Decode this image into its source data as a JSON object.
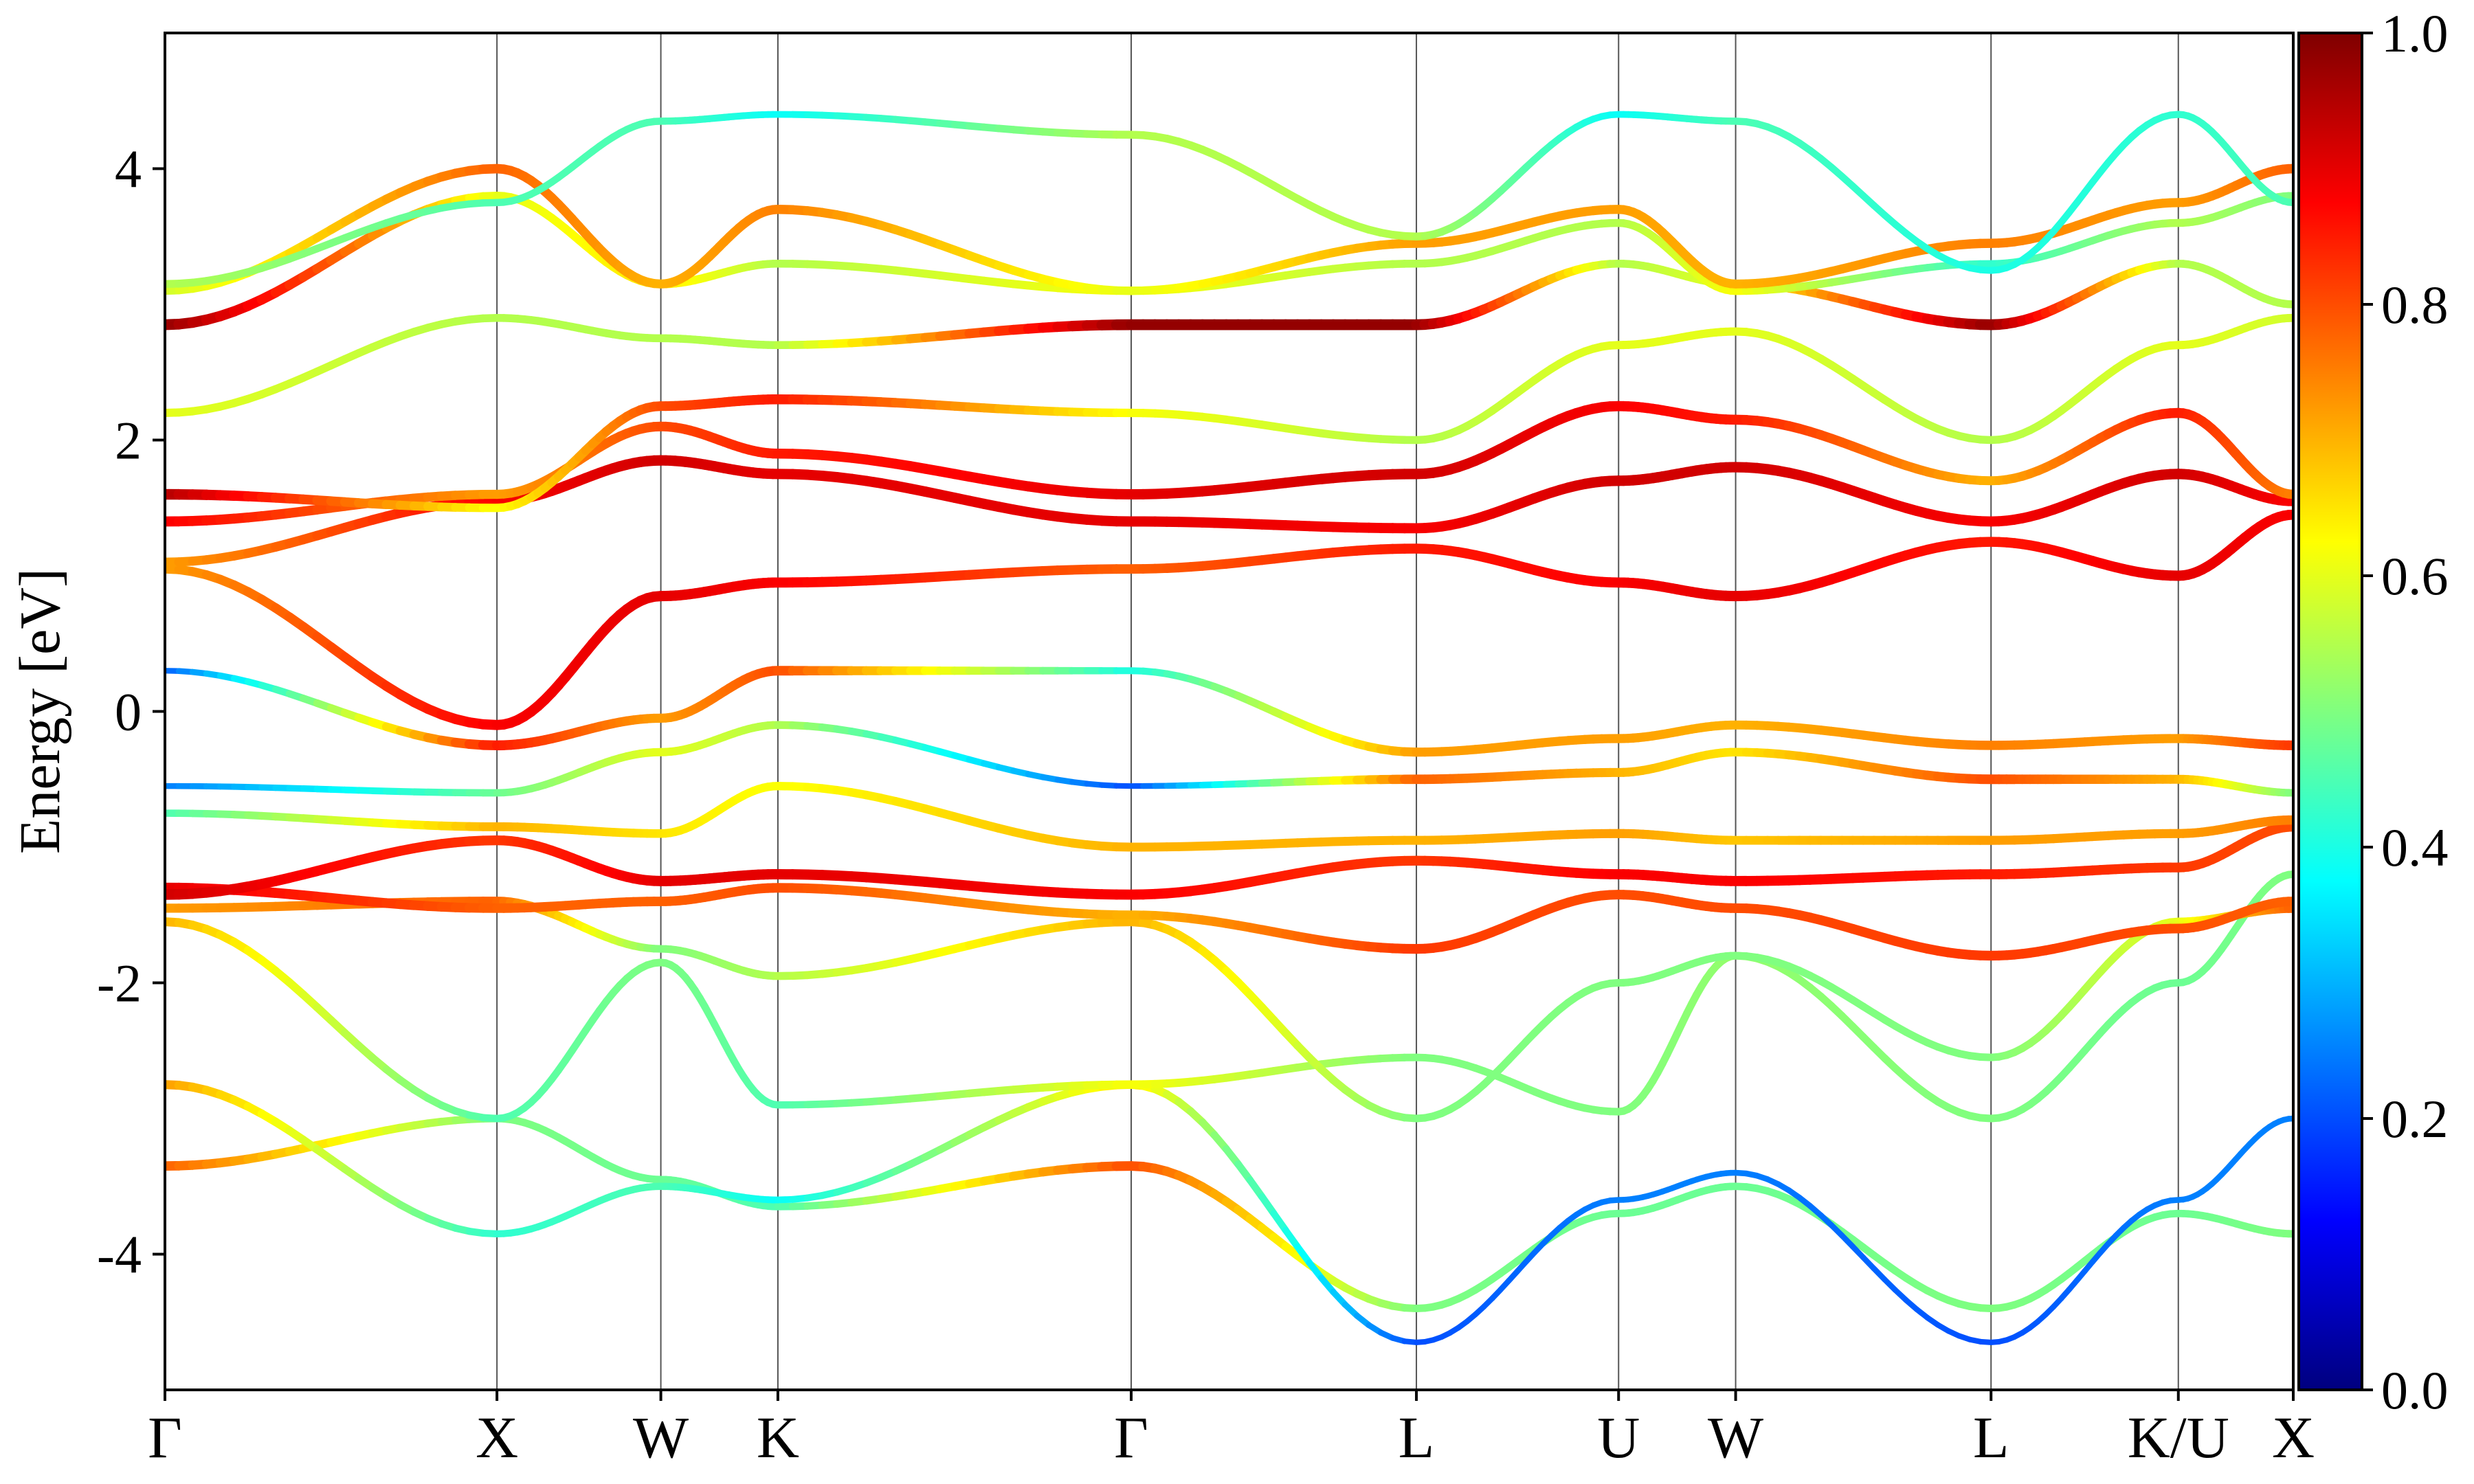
{
  "chart_data": {
    "type": "line",
    "ylabel": "Energy [eV]",
    "ylim": [
      -5,
      5
    ],
    "yticks": [
      4,
      2,
      0,
      -2,
      -4
    ],
    "ytick_labels": [
      "4",
      "2",
      "0",
      "-2",
      "-4"
    ],
    "xlim": [
      0,
      10
    ],
    "kpath": [
      {
        "label": "Γ",
        "x": 0.0
      },
      {
        "label": "X",
        "x": 1.56
      },
      {
        "label": "W",
        "x": 2.33
      },
      {
        "label": "K",
        "x": 2.88
      },
      {
        "label": "Γ",
        "x": 4.54
      },
      {
        "label": "L",
        "x": 5.88
      },
      {
        "label": "U",
        "x": 6.83
      },
      {
        "label": "W",
        "x": 7.38
      },
      {
        "label": "L",
        "x": 8.58
      },
      {
        "label": "K/U",
        "x": 9.46
      },
      {
        "label": "X",
        "x": 10.0
      }
    ],
    "colorbar": {
      "colormap": "jet",
      "range": [
        0.0,
        1.0
      ],
      "ticks": [
        0.0,
        0.2,
        0.4,
        0.6,
        0.8,
        1.0
      ],
      "tick_labels": [
        "0.0",
        "0.2",
        "0.4",
        "0.6",
        "0.8",
        "1.0"
      ]
    },
    "series": [
      {
        "x": [
          0,
          1.56,
          2.33,
          2.88,
          4.54,
          5.88,
          6.83,
          7.38,
          8.58,
          9.46,
          10.0
        ],
        "y": [
          -3.35,
          -3.0,
          -3.45,
          -3.65,
          -3.35,
          -4.4,
          -3.7,
          -3.5,
          -4.4,
          -3.7,
          -3.85
        ],
        "weight": [
          0.78,
          0.5,
          0.48,
          0.45,
          0.8,
          0.5,
          0.48,
          0.48,
          0.5,
          0.48,
          0.5
        ]
      },
      {
        "x": [
          0,
          1.56,
          2.33,
          2.88,
          4.54,
          5.88,
          6.83,
          7.38,
          8.58,
          9.46,
          10.0
        ],
        "y": [
          -2.75,
          -3.85,
          -3.5,
          -3.6,
          -2.75,
          -4.65,
          -3.6,
          -3.4,
          -4.65,
          -3.6,
          -3.0
        ],
        "weight": [
          0.72,
          0.42,
          0.45,
          0.38,
          0.65,
          0.2,
          0.25,
          0.25,
          0.2,
          0.25,
          0.25
        ]
      },
      {
        "x": [
          0,
          1.56,
          2.33,
          2.88,
          4.54,
          5.88,
          6.83,
          7.38,
          8.58,
          9.46,
          10.0
        ],
        "y": [
          -1.55,
          -3.0,
          -1.85,
          -2.9,
          -2.75,
          -2.55,
          -2.95,
          -1.8,
          -3.0,
          -2.0,
          -1.2
        ],
        "weight": [
          0.7,
          0.45,
          0.5,
          0.45,
          0.62,
          0.5,
          0.5,
          0.52,
          0.5,
          0.48,
          0.5
        ]
      },
      {
        "x": [
          0,
          1.56,
          2.33,
          2.88,
          4.54,
          5.88,
          6.83,
          7.38,
          8.58,
          9.46,
          10.0
        ],
        "y": [
          -1.45,
          -1.4,
          -1.75,
          -1.95,
          -1.55,
          -3.0,
          -2.0,
          -1.8,
          -2.55,
          -1.55,
          -1.45
        ],
        "weight": [
          0.72,
          0.78,
          0.5,
          0.55,
          0.7,
          0.5,
          0.5,
          0.5,
          0.5,
          0.6,
          0.78
        ]
      },
      {
        "x": [
          0,
          1.56,
          2.33,
          2.88,
          4.54,
          5.88,
          6.83,
          7.38,
          8.58,
          9.46,
          10.0
        ],
        "y": [
          -1.3,
          -1.45,
          -1.4,
          -1.3,
          -1.5,
          -1.75,
          -1.35,
          -1.45,
          -1.8,
          -1.6,
          -1.4
        ],
        "weight": [
          0.9,
          0.78,
          0.78,
          0.8,
          0.7,
          0.82,
          0.8,
          0.8,
          0.82,
          0.8,
          0.78
        ]
      },
      {
        "x": [
          0,
          1.56,
          2.33,
          2.88,
          4.54,
          5.88,
          6.83,
          7.38,
          8.58,
          9.46,
          10.0
        ],
        "y": [
          -1.35,
          -0.95,
          -1.25,
          -1.2,
          -1.35,
          -1.1,
          -1.2,
          -1.25,
          -1.2,
          -1.15,
          -0.85
        ],
        "weight": [
          0.92,
          0.82,
          0.9,
          0.9,
          0.88,
          0.82,
          0.88,
          0.88,
          0.85,
          0.82,
          0.8
        ]
      },
      {
        "x": [
          0,
          1.56,
          2.33,
          2.88,
          4.54,
          5.88,
          6.83,
          7.38,
          8.58,
          9.46,
          10.0
        ],
        "y": [
          -0.75,
          -0.85,
          -0.9,
          -0.55,
          -1.0,
          -0.95,
          -0.9,
          -0.95,
          -0.95,
          -0.9,
          -0.8
        ],
        "weight": [
          0.45,
          0.7,
          0.65,
          0.62,
          0.7,
          0.7,
          0.72,
          0.68,
          0.72,
          0.72,
          0.75
        ]
      },
      {
        "x": [
          0,
          1.56,
          2.33,
          2.88,
          4.54,
          5.88,
          6.83,
          7.38,
          8.58,
          9.46,
          10.0
        ],
        "y": [
          -0.55,
          -0.6,
          -0.3,
          -0.1,
          -0.55,
          -0.5,
          -0.45,
          -0.3,
          -0.5,
          -0.5,
          -0.6
        ],
        "weight": [
          0.25,
          0.48,
          0.6,
          0.55,
          0.2,
          0.78,
          0.7,
          0.65,
          0.8,
          0.7,
          0.5
        ]
      },
      {
        "x": [
          0,
          1.56,
          2.33,
          2.88,
          4.54,
          5.88,
          6.83,
          7.38,
          8.58,
          9.46,
          10.0
        ],
        "y": [
          0.3,
          -0.25,
          -0.05,
          0.3,
          0.3,
          -0.3,
          -0.2,
          -0.1,
          -0.25,
          -0.2,
          -0.25
        ],
        "weight": [
          0.22,
          0.85,
          0.72,
          0.8,
          0.4,
          0.72,
          0.72,
          0.7,
          0.75,
          0.72,
          0.82
        ]
      },
      {
        "x": [
          0,
          1.56,
          2.33,
          2.88,
          4.54,
          5.88,
          6.83,
          7.38,
          8.58,
          9.46,
          10.0
        ],
        "y": [
          1.05,
          -0.1,
          0.85,
          0.95,
          1.05,
          1.2,
          0.95,
          0.85,
          1.25,
          1.0,
          1.45
        ],
        "weight": [
          0.72,
          0.88,
          0.9,
          0.88,
          0.78,
          0.85,
          0.88,
          0.9,
          0.85,
          0.9,
          0.88
        ]
      },
      {
        "x": [
          0,
          1.56,
          2.33,
          2.88,
          4.54,
          5.88,
          6.83,
          7.38,
          8.58,
          9.46,
          10.0
        ],
        "y": [
          1.1,
          1.55,
          1.85,
          1.75,
          1.4,
          1.35,
          1.7,
          1.8,
          1.4,
          1.75,
          1.55
        ],
        "weight": [
          0.72,
          0.88,
          0.92,
          0.9,
          0.9,
          0.88,
          0.92,
          0.92,
          0.88,
          0.92,
          0.88
        ]
      },
      {
        "x": [
          0,
          1.56,
          2.33,
          2.88,
          4.54,
          5.88,
          6.83,
          7.38,
          8.58,
          9.46,
          10.0
        ],
        "y": [
          1.4,
          1.6,
          2.1,
          1.9,
          1.6,
          1.75,
          2.25,
          2.15,
          1.7,
          2.2,
          1.6
        ],
        "weight": [
          0.88,
          0.72,
          0.8,
          0.85,
          0.9,
          0.92,
          0.88,
          0.85,
          0.7,
          0.85,
          0.75
        ]
      },
      {
        "x": [
          0,
          1.56,
          2.33,
          2.88,
          4.54,
          5.88,
          6.83,
          7.38,
          8.58,
          9.46,
          10.0
        ],
        "y": [
          1.6,
          1.5,
          2.25,
          2.3,
          2.2,
          2.0,
          2.7,
          2.8,
          2.0,
          2.7,
          2.9
        ],
        "weight": [
          0.95,
          0.62,
          0.8,
          0.85,
          0.62,
          0.55,
          0.6,
          0.6,
          0.55,
          0.6,
          0.58
        ]
      },
      {
        "x": [
          0,
          1.56,
          2.33,
          2.88,
          4.54,
          5.88,
          6.83,
          7.38,
          8.58,
          9.46,
          10.0
        ],
        "y": [
          2.2,
          2.9,
          2.75,
          2.7,
          2.85,
          2.85,
          3.3,
          3.15,
          2.85,
          3.3,
          3.0
        ],
        "weight": [
          0.6,
          0.55,
          0.55,
          0.55,
          0.98,
          0.98,
          0.55,
          0.6,
          0.98,
          0.55,
          0.55
        ]
      },
      {
        "x": [
          0,
          1.56,
          2.33,
          2.88,
          4.54,
          5.88,
          6.83,
          7.38,
          8.58,
          9.46,
          10.0
        ],
        "y": [
          2.85,
          3.8,
          3.15,
          3.3,
          3.1,
          3.3,
          3.6,
          3.1,
          3.3,
          3.6,
          3.8
        ],
        "weight": [
          0.98,
          0.6,
          0.65,
          0.55,
          0.62,
          0.55,
          0.55,
          0.62,
          0.42,
          0.55,
          0.5
        ]
      },
      {
        "x": [
          0,
          1.56,
          2.33,
          2.88,
          4.54,
          5.88,
          6.83,
          7.38,
          8.58,
          9.46,
          10.0
        ],
        "y": [
          3.1,
          4.0,
          3.15,
          3.7,
          3.1,
          3.45,
          3.7,
          3.15,
          3.45,
          3.75,
          4.0
        ],
        "weight": [
          0.58,
          0.78,
          0.7,
          0.75,
          0.6,
          0.72,
          0.72,
          0.7,
          0.75,
          0.72,
          0.78
        ]
      },
      {
        "x": [
          0,
          1.56,
          2.33,
          2.88,
          4.54,
          5.88,
          6.83,
          7.38,
          8.58,
          9.46,
          10.0
        ],
        "y": [
          3.15,
          3.75,
          4.35,
          4.4,
          4.25,
          3.5,
          4.4,
          4.35,
          3.25,
          4.4,
          3.75
        ],
        "weight": [
          0.55,
          0.45,
          0.45,
          0.38,
          0.55,
          0.55,
          0.38,
          0.45,
          0.4,
          0.42,
          0.45
        ]
      }
    ]
  }
}
